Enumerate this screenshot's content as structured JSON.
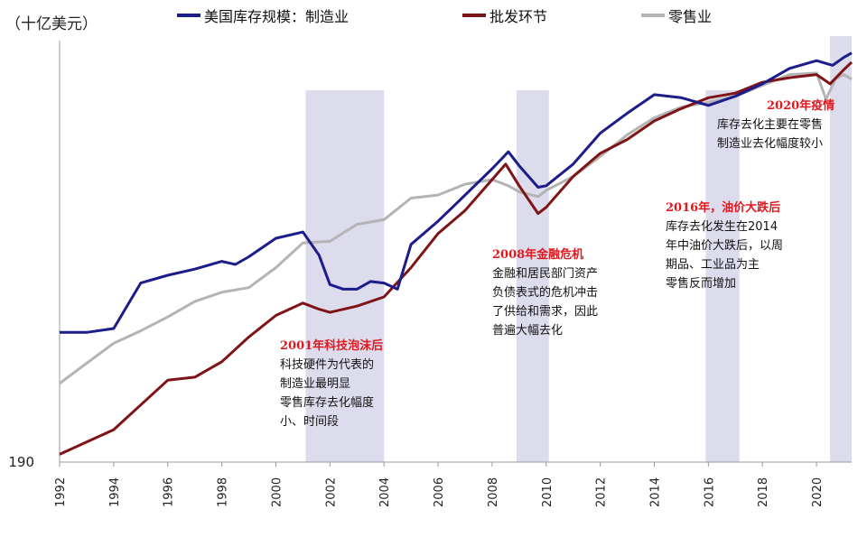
{
  "chart_data": {
    "type": "line",
    "unit_label": "（十亿美元）",
    "x_range": [
      1992,
      2021.3
    ],
    "y_axis": {
      "min": 190,
      "min_label": "190"
    },
    "x_ticks": [
      "1992",
      "1994",
      "1996",
      "1998",
      "2000",
      "2002",
      "2004",
      "2006",
      "2008",
      "2010",
      "2012",
      "2014",
      "2016",
      "2018",
      "2020"
    ],
    "recessions": [
      [
        2001.1,
        2004.0
      ],
      [
        2008.9,
        2010.1
      ],
      [
        2015.9,
        2017.15
      ],
      [
        2020.5,
        2021.3
      ]
    ],
    "series": [
      {
        "name": "美国库存规模：制造业",
        "color": "#1c1c8a",
        "points": [
          [
            1992,
            -0.09
          ],
          [
            1993,
            -0.09
          ],
          [
            1994,
            -0.065
          ],
          [
            1995,
            0.23
          ],
          [
            1996,
            0.28
          ],
          [
            1997,
            0.32
          ],
          [
            1998,
            0.37
          ],
          [
            1998.5,
            0.35
          ],
          [
            1999,
            0.4
          ],
          [
            2000,
            0.52
          ],
          [
            2001,
            0.56
          ],
          [
            2001.6,
            0.41
          ],
          [
            2002,
            0.22
          ],
          [
            2002.5,
            0.19
          ],
          [
            2003,
            0.19
          ],
          [
            2003.5,
            0.24
          ],
          [
            2004,
            0.23
          ],
          [
            2004.5,
            0.19
          ],
          [
            2005,
            0.48
          ],
          [
            2006,
            0.63
          ],
          [
            2007,
            0.8
          ],
          [
            2008,
            0.97
          ],
          [
            2008.6,
            1.08
          ],
          [
            2009,
            0.99
          ],
          [
            2009.7,
            0.85
          ],
          [
            2010,
            0.86
          ],
          [
            2011,
            1.0
          ],
          [
            2012,
            1.2
          ],
          [
            2013,
            1.33
          ],
          [
            2014,
            1.45
          ],
          [
            2015,
            1.43
          ],
          [
            2016,
            1.38
          ],
          [
            2017,
            1.44
          ],
          [
            2018,
            1.52
          ],
          [
            2019,
            1.62
          ],
          [
            2020,
            1.67
          ],
          [
            2020.6,
            1.64
          ],
          [
            2021,
            1.69
          ],
          [
            2021.3,
            1.72
          ]
        ]
      },
      {
        "name": "批发环节",
        "color": "#7f1416",
        "points": [
          [
            1992,
            -0.88
          ],
          [
            1993,
            -0.8
          ],
          [
            1994,
            -0.72
          ],
          [
            1995,
            -0.56
          ],
          [
            1996,
            -0.4
          ],
          [
            1997,
            -0.38
          ],
          [
            1998,
            -0.28
          ],
          [
            1999,
            -0.12
          ],
          [
            2000,
            0.02
          ],
          [
            2001,
            0.1
          ],
          [
            2001.6,
            0.06
          ],
          [
            2002,
            0.04
          ],
          [
            2003,
            0.08
          ],
          [
            2004,
            0.14
          ],
          [
            2005,
            0.33
          ],
          [
            2006,
            0.55
          ],
          [
            2007,
            0.7
          ],
          [
            2008,
            0.9
          ],
          [
            2008.5,
            1.0
          ],
          [
            2009,
            0.86
          ],
          [
            2009.7,
            0.68
          ],
          [
            2010,
            0.72
          ],
          [
            2011,
            0.92
          ],
          [
            2012,
            1.07
          ],
          [
            2013,
            1.16
          ],
          [
            2014,
            1.28
          ],
          [
            2015,
            1.36
          ],
          [
            2016,
            1.43
          ],
          [
            2017,
            1.46
          ],
          [
            2018,
            1.53
          ],
          [
            2019,
            1.56
          ],
          [
            2020,
            1.58
          ],
          [
            2020.5,
            1.52
          ],
          [
            2021,
            1.61
          ],
          [
            2021.3,
            1.66
          ]
        ]
      },
      {
        "name": "零售业",
        "color": "#b4b4b4",
        "points": [
          [
            1992,
            -0.42
          ],
          [
            1993,
            -0.29
          ],
          [
            1994,
            -0.16
          ],
          [
            1995,
            -0.08
          ],
          [
            1996,
            0.01
          ],
          [
            1997,
            0.11
          ],
          [
            1998,
            0.17
          ],
          [
            1999,
            0.2
          ],
          [
            2000,
            0.33
          ],
          [
            2001,
            0.49
          ],
          [
            2002,
            0.5
          ],
          [
            2003,
            0.61
          ],
          [
            2004,
            0.64
          ],
          [
            2005,
            0.78
          ],
          [
            2006,
            0.8
          ],
          [
            2007,
            0.87
          ],
          [
            2008,
            0.9
          ],
          [
            2008.6,
            0.86
          ],
          [
            2009,
            0.82
          ],
          [
            2009.7,
            0.79
          ],
          [
            2010,
            0.83
          ],
          [
            2011,
            0.92
          ],
          [
            2012,
            1.05
          ],
          [
            2013,
            1.19
          ],
          [
            2014,
            1.3
          ],
          [
            2015,
            1.37
          ],
          [
            2016,
            1.4
          ],
          [
            2017,
            1.44
          ],
          [
            2018,
            1.51
          ],
          [
            2019,
            1.58
          ],
          [
            2020,
            1.59
          ],
          [
            2020.35,
            1.42
          ],
          [
            2020.7,
            1.55
          ],
          [
            2021,
            1.58
          ],
          [
            2021.3,
            1.55
          ]
        ]
      }
    ]
  },
  "annotations": [
    {
      "title": "2001年科技泡沫后",
      "lines": [
        "科技硬件为代表的",
        "制造业最明显",
        "零售库存去化幅度",
        "小、时间段"
      ]
    },
    {
      "title": "2008年金融危机",
      "lines": [
        "金融和居民部门资产",
        "负债表式的危机冲击",
        "了供给和需求，因此",
        "普遍大幅去化"
      ]
    },
    {
      "title": "2016年，油价大跌后",
      "lines": [
        "库存去化发生在2014",
        "年中油价大跌后，以周",
        "期品、工业品为主",
        "零售反而增加"
      ]
    },
    {
      "title": "2020年疫情",
      "lines": [
        "库存去化主要在零售",
        "制造业去化幅度较小"
      ]
    }
  ]
}
